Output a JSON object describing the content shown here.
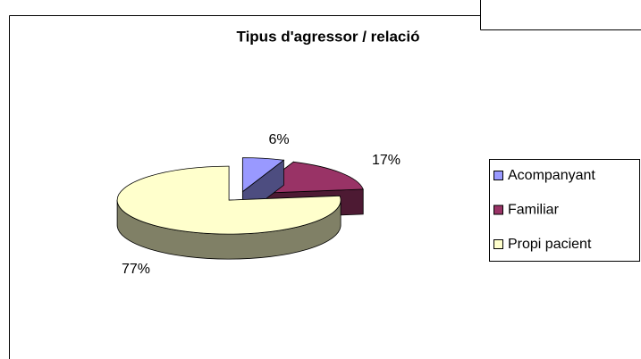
{
  "chart_data": {
    "type": "pie3d",
    "title": "Tipus d'agressor / relació",
    "categories": [
      "Acompanyant",
      "Familiar",
      "Propi pacient"
    ],
    "values": [
      6,
      17,
      77
    ],
    "value_labels": [
      "6%",
      "17%",
      "77%"
    ],
    "colors": [
      "#9999ff",
      "#993366",
      "#ffffcc"
    ],
    "legend": "right"
  }
}
